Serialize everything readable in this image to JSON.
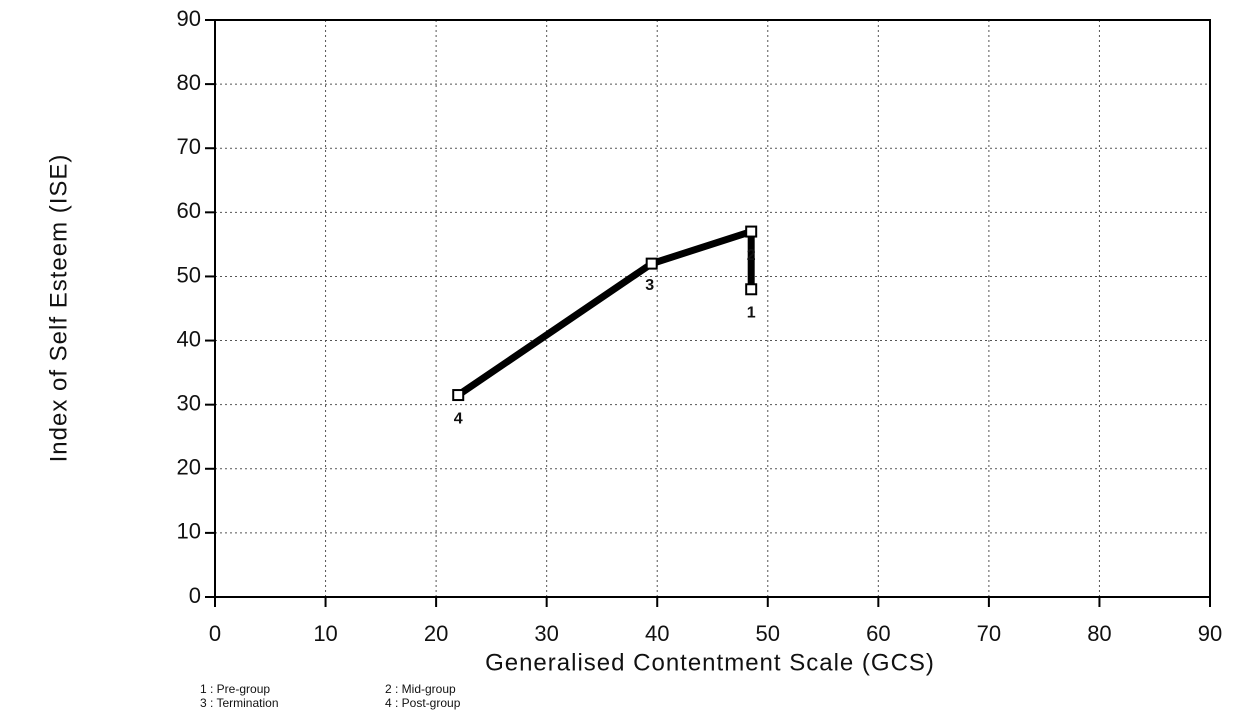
{
  "chart_data": {
    "type": "line",
    "x_label": "Generalised Contentment Scale (GCS)",
    "y_label": "Index of Self Esteem (ISE)",
    "series": [
      {
        "x": [
          48.5,
          48.5,
          39.5,
          22
        ],
        "values": [
          48,
          57,
          52,
          31.5
        ],
        "labels": [
          "1",
          "2",
          "3",
          "4"
        ],
        "color": "#000000"
      }
    ],
    "xlim": [
      0,
      90
    ],
    "xticks": [
      0,
      10,
      20,
      30,
      40,
      50,
      60,
      70,
      80,
      90
    ],
    "ylim": [
      0,
      90
    ],
    "yticks": [
      0,
      10,
      20,
      30,
      40,
      50,
      60,
      70,
      80,
      90
    ],
    "grid": true,
    "legend": [
      "1 : Pre-group",
      "2 : Mid-group",
      "3 : Termination",
      "4 : Post-group"
    ]
  }
}
